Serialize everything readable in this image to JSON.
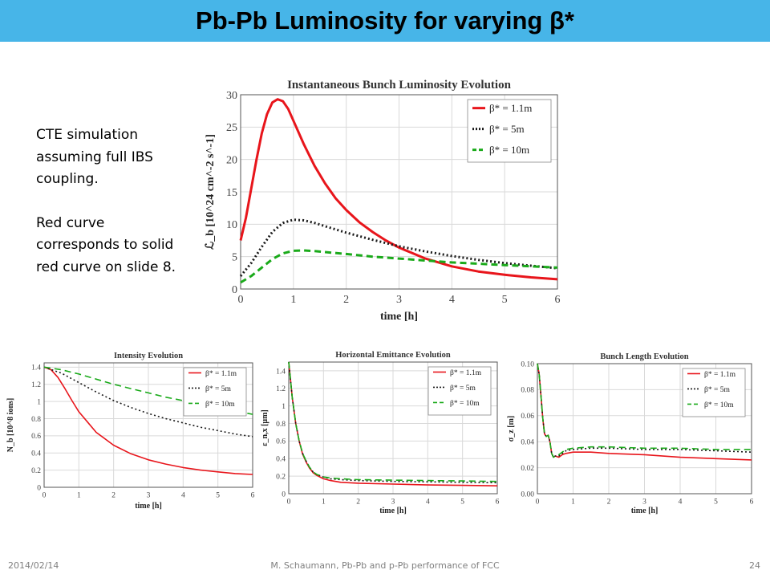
{
  "slide": {
    "title": "Pb-Pb Luminosity for varying β*",
    "note_lines_1": [
      "CTE simulation",
      "assuming full IBS",
      "coupling."
    ],
    "note_lines_2": [
      "Red curve",
      "corresponds to solid",
      "red curve on slide 8."
    ],
    "footer_date": "2014/02/14",
    "footer_center": "M. Schaumann, Pb-Pb and p-Pb performance of FCC",
    "footer_page": "24"
  },
  "colors": {
    "title_bar": "#47b5e8",
    "red": "#e8151b",
    "black": "#1a1a1a",
    "green": "#1aaa1a"
  },
  "chart_data": [
    {
      "type": "line",
      "title": "Instantaneous Bunch Luminosity Evolution",
      "xlabel": "time [h]",
      "ylabel": "ℒ_b [10^24 cm^-2 s^-1]",
      "xlim": [
        0,
        6
      ],
      "ylim": [
        0,
        30
      ],
      "xticks": [
        0,
        1,
        2,
        3,
        4,
        5,
        6
      ],
      "yticks": [
        0,
        5,
        10,
        15,
        20,
        25,
        30
      ],
      "grid": true,
      "legend": "top-right",
      "series": [
        {
          "name": "β* = 1.1m",
          "style": "solid",
          "color": "red",
          "x": [
            0,
            0.1,
            0.2,
            0.3,
            0.4,
            0.5,
            0.6,
            0.7,
            0.8,
            0.9,
            1.0,
            1.2,
            1.4,
            1.6,
            1.8,
            2.0,
            2.25,
            2.5,
            2.75,
            3.0,
            3.5,
            4.0,
            4.5,
            5.0,
            5.5,
            6.0
          ],
          "y": [
            7.5,
            11,
            15.5,
            20,
            24,
            27,
            28.8,
            29.3,
            29.0,
            27.8,
            26.0,
            22.3,
            19.0,
            16.3,
            14.0,
            12.2,
            10.3,
            8.8,
            7.5,
            6.4,
            4.7,
            3.5,
            2.7,
            2.2,
            1.8,
            1.5
          ]
        },
        {
          "name": "β* = 5m",
          "style": "dotted",
          "color": "black",
          "x": [
            0,
            0.2,
            0.4,
            0.6,
            0.8,
            1.0,
            1.2,
            1.4,
            1.6,
            2.0,
            2.5,
            3.0,
            3.5,
            4.0,
            4.5,
            5.0,
            5.5,
            6.0
          ],
          "y": [
            2.0,
            4.0,
            6.5,
            8.8,
            10.2,
            10.7,
            10.6,
            10.2,
            9.7,
            8.7,
            7.6,
            6.6,
            5.8,
            5.1,
            4.5,
            4.0,
            3.6,
            3.2
          ]
        },
        {
          "name": "β* = 10m",
          "style": "dashed",
          "color": "green",
          "x": [
            0,
            0.2,
            0.4,
            0.6,
            0.8,
            1.0,
            1.2,
            1.4,
            1.6,
            2.0,
            2.5,
            3.0,
            3.5,
            4.0,
            4.5,
            5.0,
            5.5,
            6.0
          ],
          "y": [
            1.0,
            2.0,
            3.3,
            4.6,
            5.5,
            5.9,
            5.95,
            5.85,
            5.7,
            5.4,
            5.0,
            4.7,
            4.4,
            4.1,
            3.9,
            3.7,
            3.5,
            3.3
          ]
        }
      ]
    },
    {
      "type": "line",
      "title": "Intensity Evolution",
      "xlabel": "time [h]",
      "ylabel": "N_b [10^8 ions]",
      "xlim": [
        0,
        6
      ],
      "ylim": [
        0,
        1.45
      ],
      "xticks": [
        0,
        1,
        2,
        3,
        4,
        5,
        6
      ],
      "yticks": [
        0.0,
        0.2,
        0.4,
        0.6,
        0.8,
        1.0,
        1.2,
        1.4
      ],
      "grid": true,
      "legend": "top-right",
      "series": [
        {
          "name": "β* = 1.1m",
          "style": "solid",
          "color": "red",
          "x": [
            0,
            0.2,
            0.4,
            0.6,
            0.8,
            1.0,
            1.25,
            1.5,
            2.0,
            2.5,
            3.0,
            3.5,
            4.0,
            4.5,
            5.0,
            5.5,
            6.0
          ],
          "y": [
            1.4,
            1.37,
            1.28,
            1.15,
            1.01,
            0.88,
            0.76,
            0.64,
            0.49,
            0.39,
            0.32,
            0.27,
            0.23,
            0.2,
            0.18,
            0.16,
            0.15
          ]
        },
        {
          "name": "β* = 5m",
          "style": "dotted",
          "color": "black",
          "x": [
            0,
            0.5,
            1.0,
            1.5,
            2.0,
            2.5,
            3.0,
            3.5,
            4.0,
            4.5,
            5.0,
            5.5,
            6.0
          ],
          "y": [
            1.4,
            1.33,
            1.22,
            1.11,
            1.01,
            0.93,
            0.86,
            0.8,
            0.75,
            0.7,
            0.66,
            0.62,
            0.59
          ]
        },
        {
          "name": "β* = 10m",
          "style": "dashed",
          "color": "green",
          "x": [
            0,
            0.5,
            1.0,
            1.5,
            2.0,
            2.5,
            3.0,
            3.5,
            4.0,
            4.5,
            5.0,
            5.5,
            6.0
          ],
          "y": [
            1.4,
            1.37,
            1.32,
            1.26,
            1.2,
            1.15,
            1.1,
            1.05,
            1.01,
            0.97,
            0.93,
            0.89,
            0.85
          ]
        }
      ]
    },
    {
      "type": "line",
      "title": "Horizontal Emittance Evolution",
      "xlabel": "time [h]",
      "ylabel": "ε_n,x [μm]",
      "xlim": [
        0,
        6
      ],
      "ylim": [
        0,
        1.5
      ],
      "xticks": [
        0,
        1,
        2,
        3,
        4,
        5,
        6
      ],
      "yticks": [
        0.0,
        0.2,
        0.4,
        0.6,
        0.8,
        1.0,
        1.2,
        1.4
      ],
      "grid": true,
      "legend": "top-right",
      "series": [
        {
          "name": "β* = 1.1m",
          "style": "solid",
          "color": "red",
          "x": [
            0,
            0.05,
            0.1,
            0.15,
            0.2,
            0.3,
            0.4,
            0.5,
            0.6,
            0.7,
            0.8,
            1.0,
            1.2,
            1.5,
            2.0,
            3.0,
            4.0,
            5.0,
            6.0
          ],
          "y": [
            1.5,
            1.3,
            1.1,
            0.95,
            0.8,
            0.6,
            0.45,
            0.36,
            0.29,
            0.24,
            0.21,
            0.17,
            0.15,
            0.13,
            0.12,
            0.11,
            0.1,
            0.095,
            0.09
          ]
        },
        {
          "name": "β* = 5m",
          "style": "dotted",
          "color": "black",
          "x": [
            0,
            0.05,
            0.1,
            0.15,
            0.2,
            0.3,
            0.4,
            0.5,
            0.6,
            0.7,
            0.8,
            1.0,
            1.2,
            1.5,
            2.0,
            3.0,
            4.0,
            5.0,
            6.0
          ],
          "y": [
            1.5,
            1.3,
            1.1,
            0.95,
            0.8,
            0.6,
            0.46,
            0.37,
            0.3,
            0.25,
            0.22,
            0.19,
            0.17,
            0.16,
            0.15,
            0.14,
            0.135,
            0.13,
            0.125
          ]
        },
        {
          "name": "β* = 10m",
          "style": "dashed",
          "color": "green",
          "x": [
            0,
            0.05,
            0.1,
            0.15,
            0.2,
            0.3,
            0.4,
            0.5,
            0.6,
            0.7,
            0.8,
            1.0,
            1.2,
            1.5,
            2.0,
            3.0,
            4.0,
            5.0,
            6.0
          ],
          "y": [
            1.5,
            1.3,
            1.1,
            0.95,
            0.8,
            0.6,
            0.46,
            0.37,
            0.3,
            0.25,
            0.22,
            0.19,
            0.18,
            0.17,
            0.16,
            0.155,
            0.15,
            0.145,
            0.14
          ]
        }
      ]
    },
    {
      "type": "line",
      "title": "Bunch Length Evolution",
      "xlabel": "time [h]",
      "ylabel": "σ_z [m]",
      "xlim": [
        0,
        6
      ],
      "ylim": [
        0,
        0.1
      ],
      "xticks": [
        0,
        1,
        2,
        3,
        4,
        5,
        6
      ],
      "yticks": [
        0.0,
        0.02,
        0.04,
        0.06,
        0.08,
        0.1
      ],
      "ytick_labels": [
        "0.00",
        "0.02",
        "0.04",
        "0.06",
        "0.08",
        "0.10"
      ],
      "grid": true,
      "legend": "top-right",
      "series": [
        {
          "name": "β* = 1.1m",
          "style": "solid",
          "color": "red",
          "x": [
            0,
            0.05,
            0.1,
            0.15,
            0.2,
            0.25,
            0.3,
            0.35,
            0.4,
            0.45,
            0.5,
            0.6,
            0.7,
            0.8,
            1.0,
            1.5,
            2.0,
            3.0,
            4.0,
            5.0,
            6.0
          ],
          "y": [
            0.1,
            0.092,
            0.075,
            0.058,
            0.046,
            0.044,
            0.045,
            0.04,
            0.031,
            0.028,
            0.029,
            0.028,
            0.03,
            0.031,
            0.032,
            0.032,
            0.031,
            0.03,
            0.028,
            0.027,
            0.026
          ]
        },
        {
          "name": "β* = 5m",
          "style": "dotted",
          "color": "black",
          "x": [
            0,
            0.05,
            0.1,
            0.15,
            0.2,
            0.25,
            0.3,
            0.35,
            0.4,
            0.45,
            0.5,
            0.6,
            0.7,
            0.8,
            1.0,
            1.5,
            2.0,
            3.0,
            4.0,
            5.0,
            6.0
          ],
          "y": [
            0.1,
            0.092,
            0.075,
            0.058,
            0.046,
            0.044,
            0.045,
            0.04,
            0.031,
            0.028,
            0.029,
            0.029,
            0.031,
            0.033,
            0.034,
            0.035,
            0.035,
            0.034,
            0.034,
            0.033,
            0.032
          ]
        },
        {
          "name": "β* = 10m",
          "style": "dashed",
          "color": "green",
          "x": [
            0,
            0.05,
            0.1,
            0.15,
            0.2,
            0.25,
            0.3,
            0.35,
            0.4,
            0.45,
            0.5,
            0.6,
            0.7,
            0.8,
            1.0,
            1.5,
            2.0,
            3.0,
            4.0,
            5.0,
            6.0
          ],
          "y": [
            0.1,
            0.092,
            0.075,
            0.058,
            0.046,
            0.044,
            0.045,
            0.04,
            0.031,
            0.028,
            0.029,
            0.03,
            0.032,
            0.034,
            0.035,
            0.036,
            0.036,
            0.035,
            0.035,
            0.034,
            0.034
          ]
        }
      ]
    }
  ]
}
